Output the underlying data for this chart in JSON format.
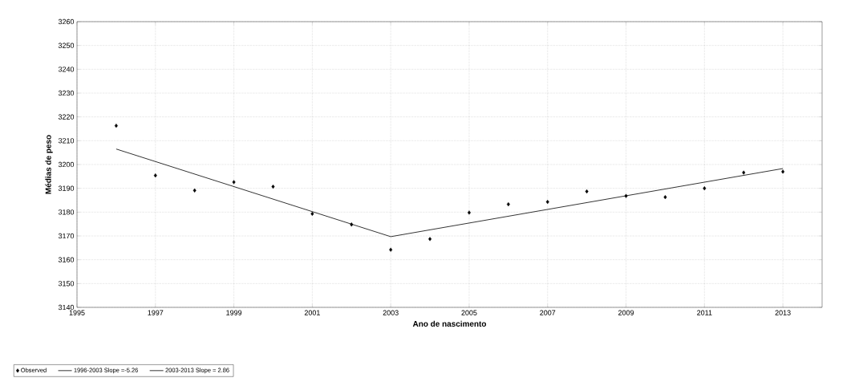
{
  "chart_data": {
    "type": "scatter",
    "xlabel": "Ano de nascimento",
    "ylabel": "Médias de peso",
    "xlim": [
      1995,
      2014
    ],
    "xticks": [
      1995,
      1997,
      1999,
      2001,
      2003,
      2005,
      2007,
      2009,
      2011,
      2013
    ],
    "ylim": [
      3140,
      3260
    ],
    "yticks": [
      3140,
      3150,
      3160,
      3170,
      3180,
      3190,
      3200,
      3210,
      3220,
      3230,
      3240,
      3250,
      3260
    ],
    "grid": true,
    "legend": "bottom left",
    "series": [
      {
        "name": "Observed",
        "marker": "diamond",
        "color": "#000000",
        "x": [
          1996,
          1997,
          1998,
          1999,
          2000,
          2001,
          2002,
          2003,
          2004,
          2005,
          2006,
          2007,
          2008,
          2009,
          2010,
          2011,
          2012,
          2013
        ],
        "values": [
          3216.3,
          3195.4,
          3189.1,
          3192.6,
          3190.7,
          3179.3,
          3174.8,
          3164.2,
          3168.7,
          3179.8,
          3183.3,
          3184.3,
          3188.7,
          3186.8,
          3186.3,
          3190.0,
          3196.6,
          3197.0
        ]
      },
      {
        "name": "1996-2003 Slope =-5.26",
        "type": "line",
        "color": "#000000",
        "x": [
          1996,
          2003
        ],
        "values": [
          3206.5,
          3169.7
        ]
      },
      {
        "name": "2003-2013 Slope = 2.86",
        "type": "line",
        "color": "#000000",
        "x": [
          2003,
          2013
        ],
        "values": [
          3169.7,
          3198.3
        ]
      }
    ]
  }
}
